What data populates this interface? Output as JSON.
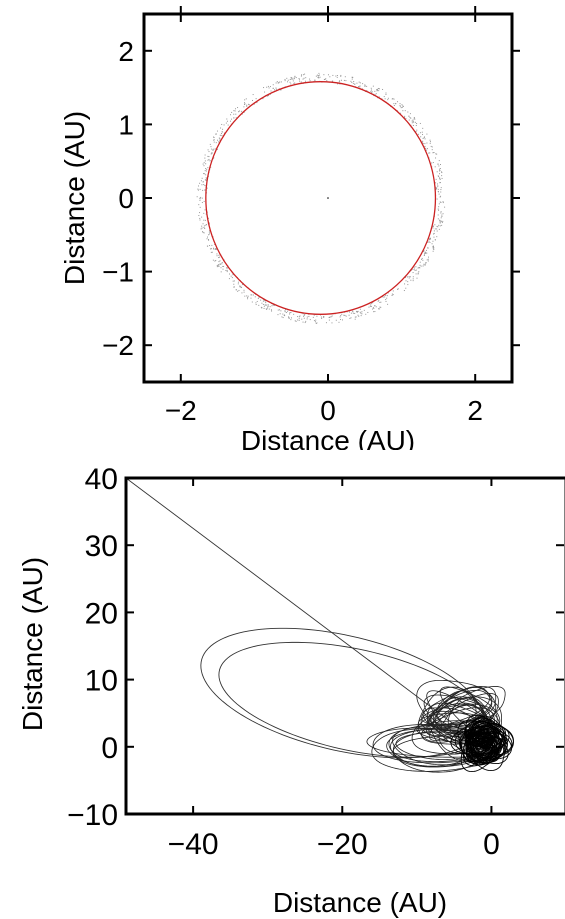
{
  "chart_data": [
    {
      "type": "scatter",
      "panel": "top",
      "xlabel": "Distance (AU)",
      "ylabel": "Distance (AU)",
      "xlim": [
        -2.5,
        2.5
      ],
      "ylim": [
        -2.5,
        2.5
      ],
      "xticks": [
        -2,
        0,
        2
      ],
      "yticks": [
        -2,
        -1,
        0,
        1,
        2
      ],
      "xtick_labels": [
        "−2",
        "0",
        "2"
      ],
      "ytick_labels": [
        "−2",
        "−1",
        "0",
        "1",
        "2"
      ],
      "grid": false,
      "series": [
        {
          "kind": "scatter-ring",
          "color": "#999999",
          "center": [
            -0.1,
            0.0
          ],
          "radius_x": 1.6,
          "radius_y": 1.62,
          "spread": 0.06,
          "count": 900
        },
        {
          "kind": "ellipse-line",
          "color": "#cc2222",
          "center": [
            -0.1,
            0.0
          ],
          "radius_x": 1.56,
          "radius_y": 1.58
        },
        {
          "kind": "center-dot",
          "color": "#000000",
          "x": 0.0,
          "y": 0.0
        }
      ]
    },
    {
      "type": "line",
      "panel": "bottom",
      "xlabel": "Distance (AU)",
      "ylabel": "Distance (AU)",
      "xlim": [
        -49,
        10
      ],
      "ylim": [
        -10,
        40
      ],
      "xticks": [
        -40,
        -20,
        0
      ],
      "yticks": [
        -10,
        0,
        10,
        20,
        30,
        40
      ],
      "xtick_labels": [
        "−40",
        "−20",
        "0"
      ],
      "ytick_labels": [
        "−10",
        "0",
        "10",
        "20",
        "30",
        "40"
      ],
      "grid": false,
      "series": [
        {
          "kind": "escape-line",
          "color": "#333333",
          "x": [
            -1,
            -49
          ],
          "y": [
            0,
            40
          ]
        },
        {
          "kind": "large-ellipses",
          "color": "#333333",
          "orbits": [
            {
              "center": [
                -20.0,
                8.0
              ],
              "a": 19.5,
              "b": 8.5,
              "tilt_deg": -15
            },
            {
              "center": [
                -18.5,
                7.0
              ],
              "a": 18.5,
              "b": 7.5,
              "tilt_deg": -14
            }
          ]
        },
        {
          "kind": "medium-loops",
          "color": "#222222",
          "count": 26,
          "center": [
            -4.0,
            4.0
          ],
          "a_range": [
            2.5,
            6.0
          ],
          "b_range": [
            1.5,
            4.0
          ]
        },
        {
          "kind": "lower-loops",
          "color": "#222222",
          "count": 10,
          "center": [
            -7.0,
            0.0
          ],
          "a_range": [
            5.0,
            9.0
          ],
          "b_range": [
            2.0,
            3.2
          ]
        },
        {
          "kind": "dense-core",
          "color": "#000000",
          "count": 60,
          "center": [
            -1.0,
            0.5
          ],
          "r_range": [
            0.5,
            3.0
          ]
        }
      ]
    }
  ]
}
